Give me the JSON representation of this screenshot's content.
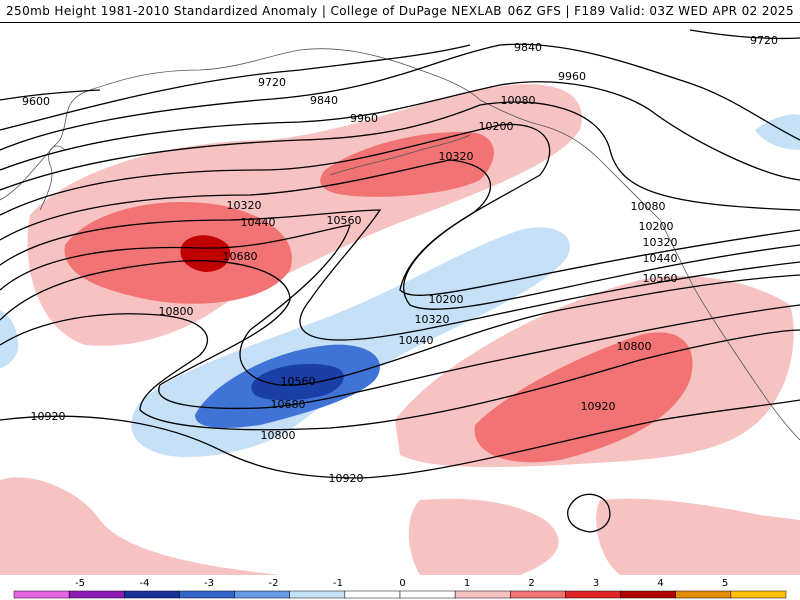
{
  "header": {
    "title": "250mb Height 1981-2010 Standardized Anomaly | College of DuPage NEXLAB",
    "run_info": "06Z GFS | F189 Valid: 03Z WED APR 02 2025"
  },
  "map": {
    "contour_labels": [
      "9600",
      "9720",
      "9720",
      "9840",
      "9840",
      "9960",
      "9960",
      "10080",
      "10080",
      "10200",
      "10200",
      "10200",
      "10320",
      "10320",
      "10320",
      "10320",
      "10440",
      "10440",
      "10440",
      "10560",
      "10560",
      "10560",
      "10680",
      "10680",
      "10800",
      "10800",
      "10800",
      "10920",
      "10920",
      "10920"
    ]
  },
  "colorbar": {
    "tick_labels": [
      "-5",
      "-4",
      "-3",
      "-2",
      "-1",
      "0",
      "1",
      "2",
      "3",
      "4",
      "5"
    ],
    "colors": [
      "#e666e6",
      "#8c1ab3",
      "#1a3399",
      "#3366cc",
      "#6699e6",
      "#c6e0f7",
      "#ffffff",
      "#ffffff",
      "#f7c2c2",
      "#f27373",
      "#e02626",
      "#b30000",
      "#e68c00",
      "#ffbf00"
    ]
  }
}
